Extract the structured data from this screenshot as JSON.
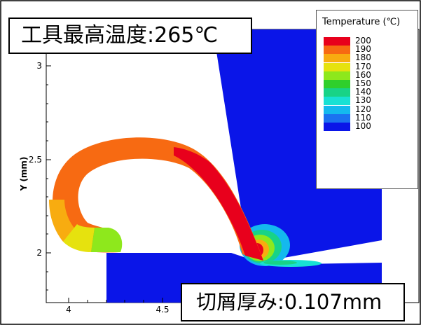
{
  "callouts": {
    "tool_max_temp": "工具最高温度:265℃",
    "chip_thickness": "切屑厚み:0.107mm"
  },
  "legend": {
    "title": "Temperature (℃)",
    "entries": [
      {
        "value": "200",
        "color": "#e8001c"
      },
      {
        "value": "190",
        "color": "#f76a12"
      },
      {
        "value": "180",
        "color": "#f8ac10"
      },
      {
        "value": "170",
        "color": "#e6e20e"
      },
      {
        "value": "160",
        "color": "#8ee81c"
      },
      {
        "value": "150",
        "color": "#2fcf2b"
      },
      {
        "value": "140",
        "color": "#18d387"
      },
      {
        "value": "130",
        "color": "#18e1d4"
      },
      {
        "value": "120",
        "color": "#14b9ee"
      },
      {
        "value": "110",
        "color": "#1b72f0"
      },
      {
        "value": "100",
        "color": "#0a15e8"
      }
    ]
  },
  "axes": {
    "ylabel": "Y (mm)",
    "yticks": [
      "3",
      "2.5",
      "2"
    ],
    "xticks": [
      "4",
      "4.5"
    ]
  },
  "colors": {
    "workpiece": "#0a15e8",
    "chip_hot": "#f76a12",
    "chip_max": "#e8001c"
  }
}
